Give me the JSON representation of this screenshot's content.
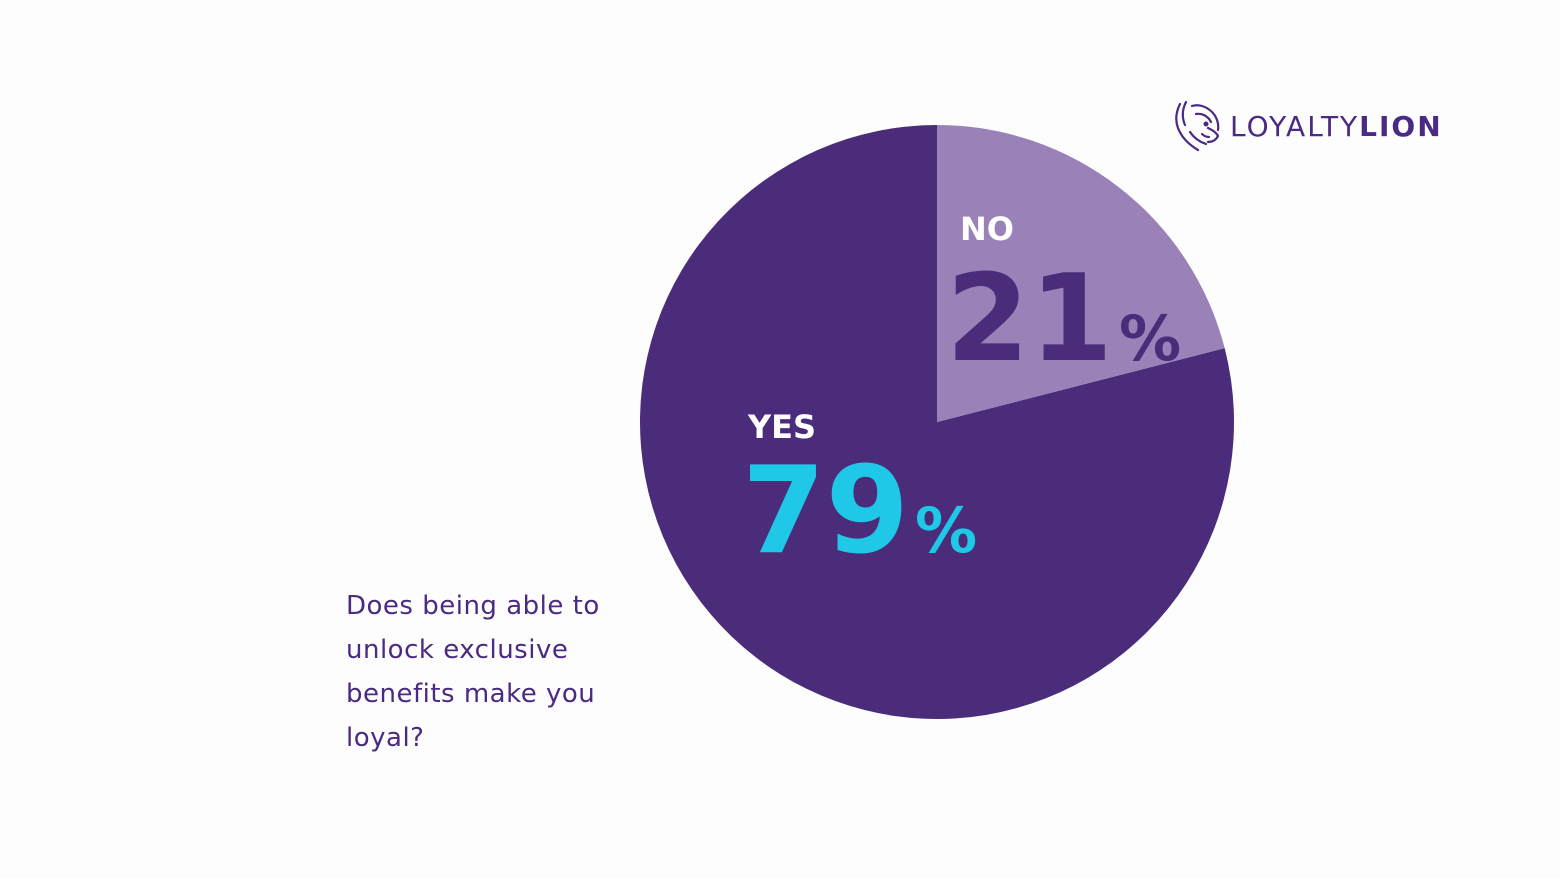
{
  "question": "Does being able to unlock exclusive benefits make you loyal?",
  "logo": {
    "part1": "LOYALTY",
    "part2": "LION"
  },
  "colors": {
    "yes_slice": "#4a2c7a",
    "no_slice": "#9a82b8",
    "yes_value": "#1ec8e6",
    "no_value": "#4a2c7a",
    "label": "#ffffff",
    "text": "#4a2a82"
  },
  "chart_data": {
    "type": "pie",
    "slices": [
      {
        "label": "NO",
        "value": 21,
        "unit": "%"
      },
      {
        "label": "YES",
        "value": 79,
        "unit": "%"
      }
    ]
  }
}
